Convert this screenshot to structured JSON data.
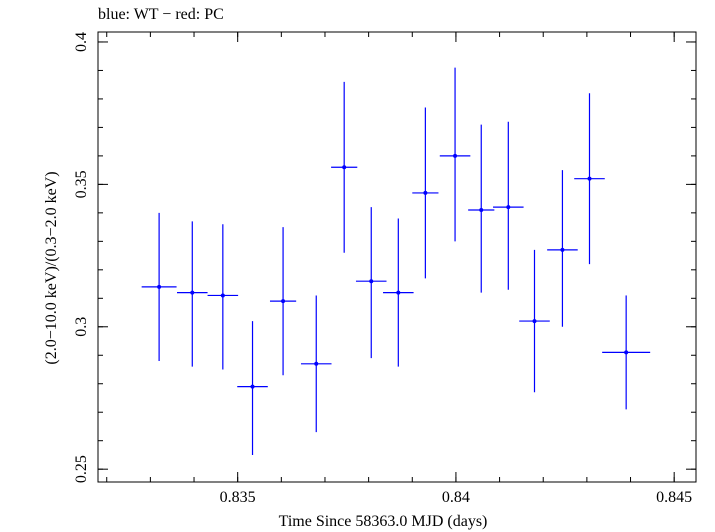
{
  "title": "blue: WT − red: PC",
  "chart_data": {
    "type": "scatter",
    "title": "blue: WT − red: PC",
    "xlabel": "Time Since 58363.0 MJD (days)",
    "ylabel": "(2.0−10.0 keV)/(0.3−2.0 keV)",
    "xlim": [
      0.8318,
      0.8455
    ],
    "ylim": [
      0.2455,
      0.4035
    ],
    "x_ticks": [
      0.835,
      0.84,
      0.845
    ],
    "x_tick_labels": [
      "0.835",
      "0.84",
      "0.845"
    ],
    "y_ticks": [
      0.25,
      0.3,
      0.35,
      0.4
    ],
    "y_tick_labels": [
      "0.25",
      "0.3",
      "0.35",
      "0.4"
    ],
    "grid": false,
    "legend": "none",
    "series": [
      {
        "color": "#0000ff",
        "points": [
          {
            "x": 0.8332,
            "y": 0.314,
            "xerr": 0.0004,
            "ylo": 0.288,
            "yhi": 0.34
          },
          {
            "x": 0.83396,
            "y": 0.312,
            "xerr": 0.00035,
            "ylo": 0.286,
            "yhi": 0.337
          },
          {
            "x": 0.83466,
            "y": 0.311,
            "xerr": 0.00035,
            "ylo": 0.285,
            "yhi": 0.336
          },
          {
            "x": 0.83534,
            "y": 0.279,
            "xerr": 0.00035,
            "ylo": 0.255,
            "yhi": 0.302
          },
          {
            "x": 0.83604,
            "y": 0.309,
            "xerr": 0.0003,
            "ylo": 0.283,
            "yhi": 0.335
          },
          {
            "x": 0.8368,
            "y": 0.287,
            "xerr": 0.00035,
            "ylo": 0.263,
            "yhi": 0.311
          },
          {
            "x": 0.83744,
            "y": 0.356,
            "xerr": 0.0003,
            "ylo": 0.326,
            "yhi": 0.386
          },
          {
            "x": 0.83806,
            "y": 0.316,
            "xerr": 0.00035,
            "ylo": 0.289,
            "yhi": 0.342
          },
          {
            "x": 0.83868,
            "y": 0.312,
            "xerr": 0.00035,
            "ylo": 0.286,
            "yhi": 0.338
          },
          {
            "x": 0.8393,
            "y": 0.347,
            "xerr": 0.0003,
            "ylo": 0.317,
            "yhi": 0.377
          },
          {
            "x": 0.83998,
            "y": 0.36,
            "xerr": 0.00035,
            "ylo": 0.33,
            "yhi": 0.391
          },
          {
            "x": 0.84058,
            "y": 0.341,
            "xerr": 0.0003,
            "ylo": 0.312,
            "yhi": 0.371
          },
          {
            "x": 0.8412,
            "y": 0.342,
            "xerr": 0.00035,
            "ylo": 0.313,
            "yhi": 0.372
          },
          {
            "x": 0.8418,
            "y": 0.302,
            "xerr": 0.00035,
            "ylo": 0.277,
            "yhi": 0.327
          },
          {
            "x": 0.84244,
            "y": 0.327,
            "xerr": 0.00035,
            "ylo": 0.3,
            "yhi": 0.355
          },
          {
            "x": 0.84306,
            "y": 0.352,
            "xerr": 0.00035,
            "ylo": 0.322,
            "yhi": 0.382
          },
          {
            "x": 0.8439,
            "y": 0.291,
            "xerr": 0.00055,
            "ylo": 0.271,
            "yhi": 0.311
          }
        ]
      }
    ]
  }
}
